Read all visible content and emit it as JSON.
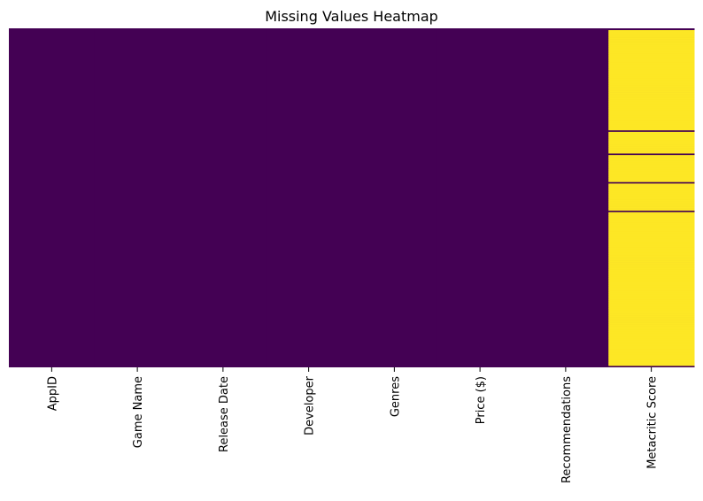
{
  "chart_data": {
    "type": "heatmap",
    "title": "Missing Values Heatmap",
    "xlabel": "",
    "ylabel": "",
    "columns": [
      "AppID",
      "Game Name",
      "Release Date",
      "Developer",
      "Genres",
      "Price ($)",
      "Recommendations",
      "Metacritic Score"
    ],
    "n_rows": 190,
    "value_meaning": "1 = missing, 0 = present",
    "missing_rows_by_column": {
      "AppID": [],
      "Game Name": [],
      "Release Date": [],
      "Developer": [],
      "Genres": [],
      "Price ($)": [],
      "Recommendations": [],
      "Metacritic Score": [
        1,
        2,
        3,
        4,
        5,
        6,
        7,
        8,
        9,
        10,
        11,
        12,
        13,
        14,
        15,
        16,
        17,
        18,
        19,
        20,
        21,
        22,
        23,
        24,
        25,
        26,
        27,
        28,
        29,
        30,
        31,
        32,
        33,
        34,
        35,
        36,
        37,
        38,
        39,
        40,
        41,
        42,
        43,
        44,
        45,
        46,
        47,
        48,
        49,
        50,
        51,
        52,
        53,
        54,
        55,
        56,
        58,
        59,
        60,
        61,
        62,
        63,
        64,
        65,
        66,
        67,
        68,
        69,
        71,
        72,
        73,
        74,
        75,
        76,
        77,
        78,
        79,
        80,
        81,
        82,
        83,
        84,
        85,
        87,
        88,
        89,
        90,
        91,
        92,
        93,
        94,
        95,
        96,
        97,
        98,
        99,
        100,
        101,
        103,
        104,
        105,
        106,
        107,
        108,
        109,
        110,
        111,
        112,
        113,
        114,
        115,
        116,
        117,
        118,
        119,
        120,
        121,
        122,
        123,
        124,
        125,
        126,
        127,
        128,
        129,
        130,
        131,
        132,
        133,
        134,
        135,
        136,
        137,
        138,
        139,
        140,
        141,
        142,
        143,
        144,
        145,
        146,
        147,
        148,
        149,
        150,
        151,
        152,
        153,
        154,
        155,
        156,
        157,
        158,
        159,
        160,
        161,
        162,
        163,
        164,
        165,
        166,
        167,
        168,
        169,
        170,
        171,
        172,
        173,
        174,
        175,
        176,
        177,
        178,
        179,
        180,
        181,
        182,
        183,
        184,
        185,
        186,
        187,
        188
      ]
    },
    "present_rows_by_column_note": "",
    "colormap": "viridis",
    "colors": {
      "present": "#440154",
      "missing": "#fde725"
    },
    "colorbar": false
  }
}
